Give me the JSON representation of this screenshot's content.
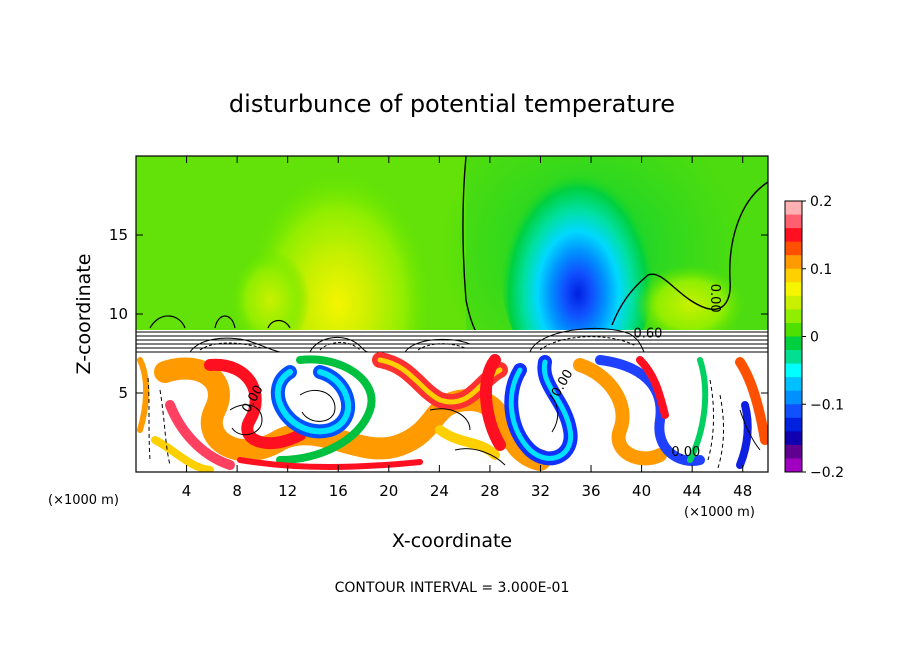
{
  "chart_data": {
    "type": "heatmap",
    "title": "disturbunce of potential temperature",
    "xlabel": "X-coordinate",
    "ylabel": "Z-coordinate",
    "x_unit_label": "(×1000 m)",
    "xlim": [
      0,
      50
    ],
    "ylim": [
      0,
      20
    ],
    "x_ticks": [
      4,
      8,
      12,
      16,
      20,
      24,
      28,
      32,
      36,
      40,
      44,
      48
    ],
    "y_ticks": [
      5,
      10,
      15
    ],
    "colorbar": {
      "range": [
        -0.2,
        0.2
      ],
      "tick_values": [
        0.2,
        0.1,
        0,
        -0.1,
        -0.2
      ],
      "tick_labels": [
        "0.2",
        "0.1",
        "0",
        "−0.1",
        "−0.2"
      ],
      "colors": [
        "#ffb0b0",
        "#ff6070",
        "#ff1020",
        "#ff5000",
        "#ff9a00",
        "#ffd000",
        "#f5f500",
        "#c8f000",
        "#90ee00",
        "#50e000",
        "#00d040",
        "#00e090",
        "#00ffff",
        "#00c0ff",
        "#0090ff",
        "#1050ff",
        "#0020e0",
        "#1000b0",
        "#600090",
        "#a000c0"
      ]
    },
    "contour_labels": [
      {
        "text": "0.60",
        "x": 40.5,
        "z": 8.5
      },
      {
        "text": "0.00",
        "x": 43.5,
        "z": 1.0
      },
      {
        "text": "0.00",
        "x": 9.5,
        "z": 4.5
      },
      {
        "text": "0.00",
        "x": 34.0,
        "z": 5.5
      },
      {
        "text": "0.00",
        "x": 45.5,
        "z": 11.0
      }
    ],
    "annotation": "CONTOUR INTERVAL = 3.000E-01"
  }
}
